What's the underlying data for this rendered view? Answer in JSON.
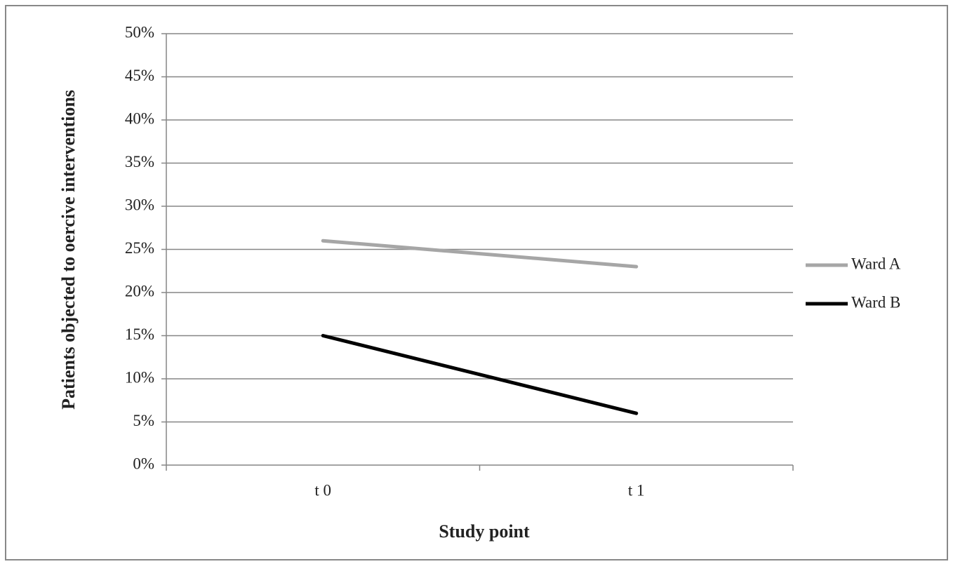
{
  "chart_data": {
    "type": "line",
    "x_label": "Study point",
    "y_label": "Patients objected to oercive interventions",
    "categories": [
      "t 0",
      "t 1"
    ],
    "series": [
      {
        "name": "Ward A",
        "color": "#a6a6a6",
        "values": [
          26,
          23
        ]
      },
      {
        "name": "Ward B",
        "color": "#000000",
        "values": [
          15,
          6
        ]
      }
    ],
    "ylim": [
      0,
      50
    ],
    "yticks": [
      {
        "value": 0,
        "label": "0%"
      },
      {
        "value": 5,
        "label": "5%"
      },
      {
        "value": 10,
        "label": "10%"
      },
      {
        "value": 15,
        "label": "15%"
      },
      {
        "value": 20,
        "label": "20%"
      },
      {
        "value": 25,
        "label": "25%"
      },
      {
        "value": 30,
        "label": "30%"
      },
      {
        "value": 35,
        "label": "35%"
      },
      {
        "value": 40,
        "label": "40%"
      },
      {
        "value": 45,
        "label": "45%"
      },
      {
        "value": 50,
        "label": "50%"
      }
    ],
    "grid": true,
    "legend": "right"
  }
}
